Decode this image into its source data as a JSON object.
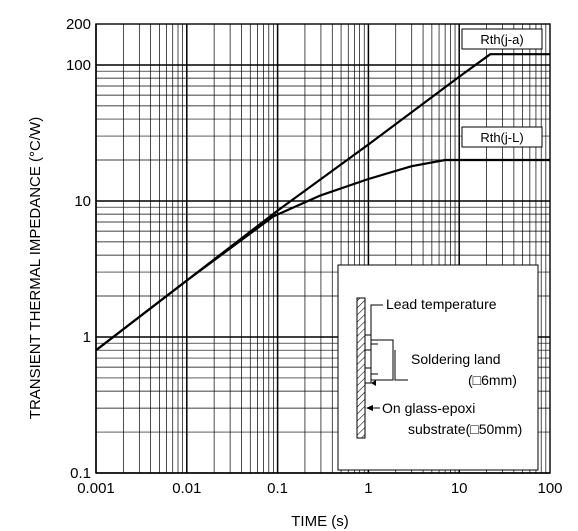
{
  "chart_data": {
    "type": "line",
    "title": "",
    "xlabel": "TIME (s)",
    "ylabel": "TRANSIENT THERMAL IMPEDANCE (°C/W)",
    "x_scale": "log",
    "y_scale": "log",
    "xlim": [
      0.001,
      100
    ],
    "ylim": [
      0.1,
      200
    ],
    "grid": true,
    "x_tick_labels": [
      "0.001",
      "0.01",
      "0.1",
      "1",
      "10",
      "100"
    ],
    "y_tick_labels": [
      "0.1",
      "1",
      "10",
      "100",
      "200"
    ],
    "series": [
      {
        "name": "Rth(j-a)",
        "x": [
          0.001,
          0.01,
          0.1,
          1,
          10,
          22,
          100
        ],
        "y": [
          0.8,
          2.6,
          8.5,
          26,
          82,
          120,
          120
        ]
      },
      {
        "name": "Rth(j-L)",
        "x": [
          0.001,
          0.01,
          0.09,
          0.3,
          1,
          3,
          7,
          100
        ],
        "y": [
          0.8,
          2.6,
          7.7,
          11,
          14.5,
          18,
          20,
          20
        ]
      }
    ],
    "inset": {
      "lead_temperature": "Lead temperature",
      "soldering_land": "Soldering land",
      "soldering_land_size": "(□6mm)",
      "substrate_line1": "On glass-epoxi",
      "substrate_line2": "substrate(□50mm)"
    }
  }
}
